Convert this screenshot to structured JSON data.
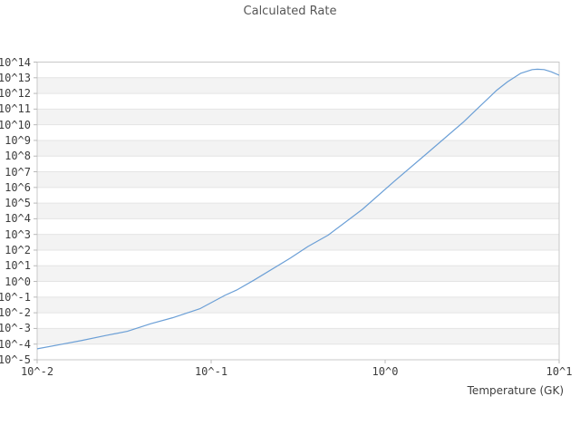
{
  "chart_data": {
    "type": "line",
    "title": "Calculated Rate",
    "xlabel": "Temperature (GK)",
    "ylabel": "",
    "x_scale": "log",
    "y_scale": "log",
    "xlim": [
      0.01,
      10
    ],
    "ylim": [
      1e-05,
      100000000000000.0
    ],
    "x_tick_labels": [
      "10^-2",
      "10^-1",
      "10^0",
      "10^1"
    ],
    "y_tick_labels": [
      "10^14",
      "10^13",
      "10^12",
      "10^11",
      "10^10",
      "10^9",
      "10^8",
      "10^7",
      "10^6",
      "10^5",
      "10^4",
      "10^3",
      "10^2",
      "10^1",
      "10^0",
      "10^-1",
      "10^-2",
      "10^-3",
      "10^-4",
      "10^-5"
    ],
    "grid": "horizontal decade gridlines with alternating shaded bands, no vertical gridlines",
    "legend": "none",
    "series": [
      {
        "name": "Calculated Rate",
        "color": "#6b9fd6",
        "points": [
          [
            0.01,
            5e-05
          ],
          [
            0.014,
            0.0001
          ],
          [
            0.018,
            0.00017
          ],
          [
            0.025,
            0.00036
          ],
          [
            0.033,
            0.00066
          ],
          [
            0.045,
            0.002
          ],
          [
            0.06,
            0.0048
          ],
          [
            0.086,
            0.018
          ],
          [
            0.12,
            0.13
          ],
          [
            0.14,
            0.28
          ],
          [
            0.176,
            1.2
          ],
          [
            0.284,
            30
          ],
          [
            0.36,
            170
          ],
          [
            0.47,
            900
          ],
          [
            0.74,
            40000.0
          ],
          [
            1.13,
            2500000.0
          ],
          [
            1.7,
            120000000.0
          ],
          [
            2.8,
            14000000000.0
          ],
          [
            4.35,
            1500000000000.0
          ],
          [
            5.05,
            5500000000000.0
          ],
          [
            6.0,
            19000000000000.0
          ],
          [
            7.0,
            33000000000000.0
          ],
          [
            7.5,
            35000000000000.0
          ],
          [
            8.2,
            33000000000000.0
          ],
          [
            9.0,
            24000000000000.0
          ],
          [
            10,
            14500000000000.0
          ]
        ]
      }
    ]
  },
  "colors": {
    "background": "#ffffff",
    "band_fill": "#f3f3f3",
    "gridline": "#e4e4e4",
    "plot_border": "#c8c8c8",
    "tick_mark": "#b9b9b9",
    "line": "#6b9fd6",
    "title_text": "#565656",
    "tick_text": "#3c3c3c",
    "axis_label_text": "#3f3f3f"
  }
}
